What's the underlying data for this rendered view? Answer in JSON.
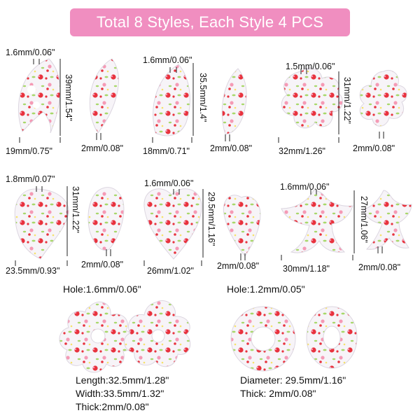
{
  "banner": {
    "text": "Total 8 Styles, Each Style 4 PCS",
    "color": "#f08ec0"
  },
  "colors": {
    "flower_red": "#e8333e",
    "flower_pink": "#f59ab5",
    "leaf_green": "#a8d86a",
    "pearl_white": "#f7f4f8",
    "outline": "#dcd6e0"
  },
  "pieces": [
    {
      "name": "monstera-leaf",
      "hole": "1.6mm/0.06\"",
      "length": "39mm/1.54\"",
      "width": "19mm/0.75\"",
      "thick": "2mm/0.08\""
    },
    {
      "name": "feather-leaf",
      "hole": "1.6mm/0.06\"",
      "length": "35.5mm/1.4\"",
      "width": "18mm/0.71\"",
      "thick": "2mm/0.08\""
    },
    {
      "name": "five-petal-flower",
      "hole": "1.5mm/0.06\"",
      "length": "31mm/1.22\"",
      "width": "32mm/1.26\"",
      "thick": "2mm/0.08\""
    },
    {
      "name": "palm-leaf",
      "hole": "1.8mm/0.07\"",
      "length": "31mm/1.22\"",
      "width": "23.5mm/0.93\"",
      "thick": "2mm/0.08\""
    },
    {
      "name": "heart-leaf",
      "hole": "1.6mm/0.06\"",
      "length": "29.5mm/1.16\"",
      "width": "26mm/1.02\"",
      "thick": "2mm/0.08\""
    },
    {
      "name": "lily-flower",
      "hole": "1.6mm/0.06\"",
      "length": "27mm/1.06\"",
      "width": "30mm/1.18\"",
      "thick": "2mm/0.08\""
    }
  ],
  "bottom_left": {
    "hole": "Hole:1.6mm/0.06\"",
    "length": "Length:32.5mm/1.28\"",
    "width": "Width:33.5mm/1.32\"",
    "thick": "Thick:2mm/0.08\""
  },
  "bottom_right": {
    "hole": "Hole:1.2mm/0.05\"",
    "diameter": "Diameter: 29.5mm/1.16\"",
    "thick": "Thick: 2mm/0.08\""
  }
}
